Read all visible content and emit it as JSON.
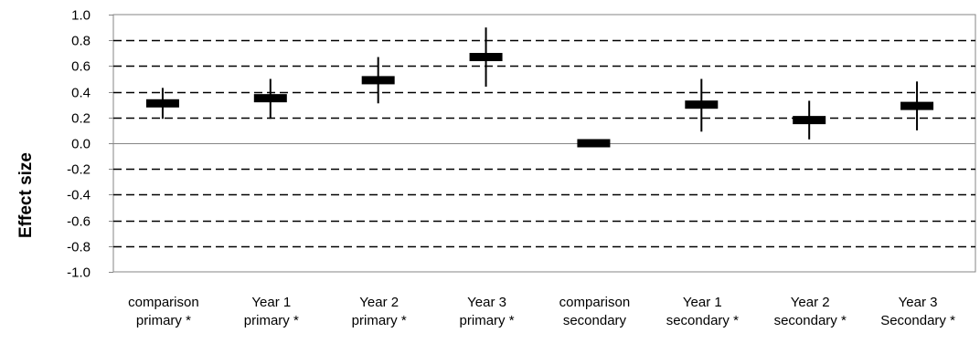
{
  "chart_data": {
    "type": "scatter",
    "ylabel": "Effect size",
    "ylim": [
      -1.0,
      1.0
    ],
    "yticks": [
      "1.0",
      "0.8",
      "0.6",
      "0.4",
      "0.2",
      "0.0",
      "-0.2",
      "-0.4",
      "-0.6",
      "-0.8",
      "-1.0"
    ],
    "grid": "dashed horizontal",
    "categories": [
      [
        "comparison",
        "primary *"
      ],
      [
        "Year 1",
        "primary *"
      ],
      [
        "Year 2",
        "primary *"
      ],
      [
        "Year 3",
        "primary *"
      ],
      [
        "comparison",
        "secondary"
      ],
      [
        "Year 1",
        "secondary *"
      ],
      [
        "Year 2",
        "secondary *"
      ],
      [
        "Year 3",
        "Secondary *"
      ]
    ],
    "series": [
      {
        "values": [
          0.31,
          0.35,
          0.49,
          0.67,
          0.0,
          0.3,
          0.18,
          0.29
        ],
        "ci_low": [
          0.19,
          0.19,
          0.31,
          0.44,
          0.0,
          0.09,
          0.03,
          0.1
        ],
        "ci_high": [
          0.43,
          0.5,
          0.67,
          0.9,
          0.0,
          0.5,
          0.33,
          0.48
        ]
      }
    ]
  }
}
